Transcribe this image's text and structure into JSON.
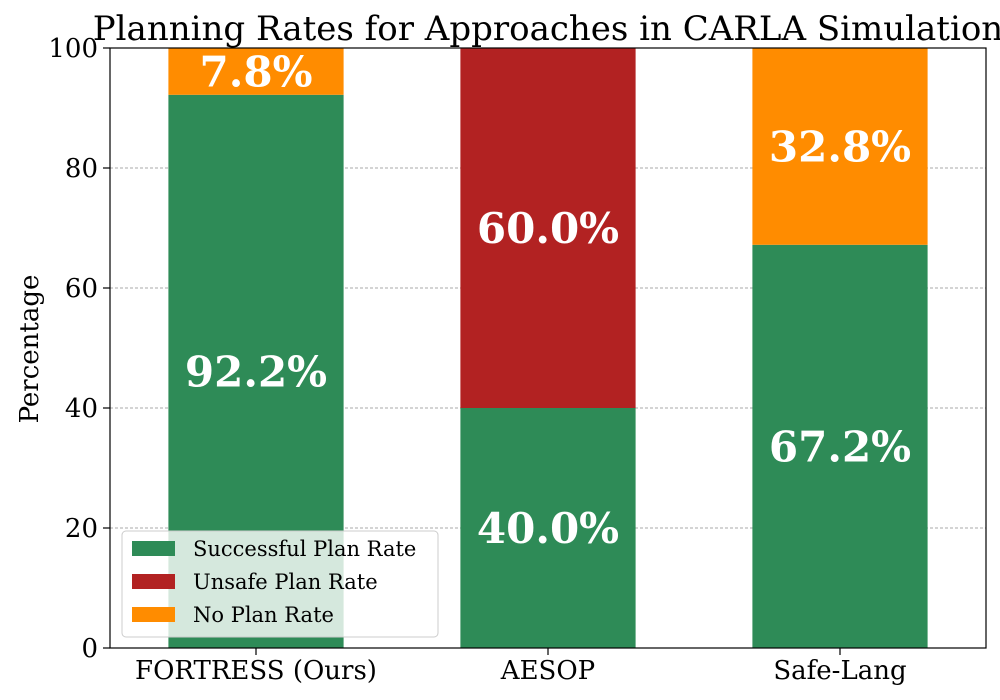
{
  "chart_data": {
    "type": "bar",
    "stacked": true,
    "title": "Planning Rates for Approaches in CARLA Simulation",
    "xlabel": "",
    "ylabel": "Percentage",
    "ylim": [
      0,
      100
    ],
    "yticks": [
      0,
      20,
      40,
      60,
      80,
      100
    ],
    "grid": "horizontal-dashed",
    "legend_position": "lower-left",
    "categories": [
      "FORTRESS (Ours)",
      "AESOP",
      "Safe-Lang"
    ],
    "series": [
      {
        "name": "Successful Plan Rate",
        "color": "#2e8b57",
        "values": [
          92.2,
          40.0,
          67.2
        ]
      },
      {
        "name": "Unsafe Plan Rate",
        "color": "#b22222",
        "values": [
          0.0,
          60.0,
          0.0
        ]
      },
      {
        "name": "No Plan Rate",
        "color": "#ff8c00",
        "values": [
          7.8,
          0.0,
          32.8
        ]
      }
    ],
    "data_labels": [
      [
        "92.2%",
        "40.0%",
        "67.2%"
      ],
      [
        "",
        "60.0%",
        ""
      ],
      [
        "7.8%",
        "",
        "32.8%"
      ]
    ]
  }
}
